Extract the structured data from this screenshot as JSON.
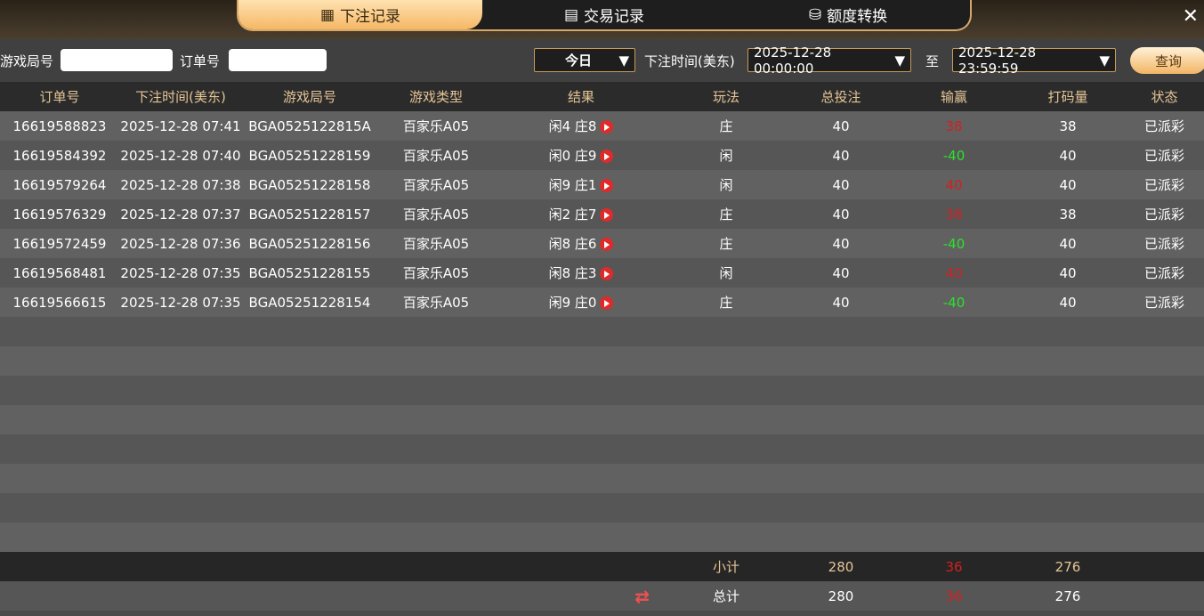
{
  "tabs": [
    {
      "label": "下注记录",
      "icon": "calendar-icon",
      "active": true
    },
    {
      "label": "交易记录",
      "icon": "clipboard-icon"
    },
    {
      "label": "额度转换",
      "icon": "coins-icon"
    }
  ],
  "filter": {
    "round_label": "游戏局号",
    "round_value": "",
    "order_label": "订单号",
    "order_value": "",
    "period": "今日",
    "time_label": "下注时间(美东)",
    "start": "2025-12-28 00:00:00",
    "to_label": "至",
    "end": "2025-12-28 23:59:59",
    "query": "查询"
  },
  "columns": [
    "订单号",
    "下注时间(美东)",
    "游戏局号",
    "游戏类型",
    "结果",
    "玩法",
    "总投注",
    "输赢",
    "打码量",
    "状态"
  ],
  "rows": [
    [
      "16619588823",
      "2025-12-28 07:41",
      "BGA0525122815A",
      "百家乐A05",
      "闲4 庄8",
      "庄",
      "40",
      "38",
      "38",
      "已派彩"
    ],
    [
      "16619584392",
      "2025-12-28 07:40",
      "BGA05251228159",
      "百家乐A05",
      "闲0 庄9",
      "闲",
      "40",
      "-40",
      "40",
      "已派彩"
    ],
    [
      "16619579264",
      "2025-12-28 07:38",
      "BGA05251228158",
      "百家乐A05",
      "闲9 庄1",
      "闲",
      "40",
      "40",
      "40",
      "已派彩"
    ],
    [
      "16619576329",
      "2025-12-28 07:37",
      "BGA05251228157",
      "百家乐A05",
      "闲2 庄7",
      "庄",
      "40",
      "38",
      "38",
      "已派彩"
    ],
    [
      "16619572459",
      "2025-12-28 07:36",
      "BGA05251228156",
      "百家乐A05",
      "闲8 庄6",
      "庄",
      "40",
      "-40",
      "40",
      "已派彩"
    ],
    [
      "16619568481",
      "2025-12-28 07:35",
      "BGA05251228155",
      "百家乐A05",
      "闲8 庄3",
      "闲",
      "40",
      "40",
      "40",
      "已派彩"
    ],
    [
      "16619566615",
      "2025-12-28 07:35",
      "BGA05251228154",
      "百家乐A05",
      "闲9 庄0",
      "庄",
      "40",
      "-40",
      "40",
      "已派彩"
    ]
  ],
  "subtotal": {
    "label": "小计",
    "bet": "280",
    "win": "36",
    "turnover": "276"
  },
  "total": {
    "label": "总计",
    "bet": "280",
    "win": "36",
    "turnover": "276"
  },
  "colors": {
    "accent": "#f5b766",
    "win": "#d42020",
    "loss": "#2de02d",
    "header_text": "#e5c596"
  }
}
